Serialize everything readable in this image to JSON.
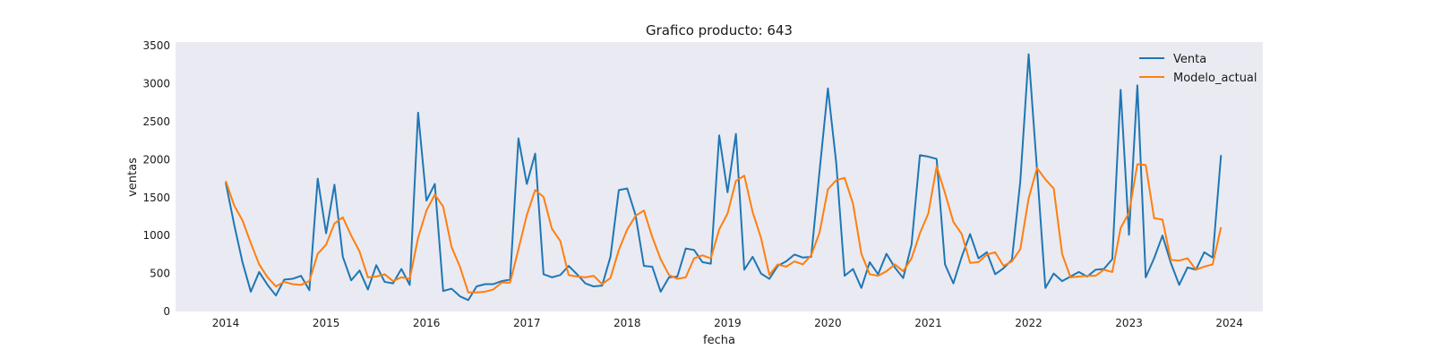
{
  "chart_data": {
    "type": "line",
    "title": "Grafico producto: 643",
    "xlabel": "fecha",
    "ylabel": "ventas",
    "x_start": "2014-01",
    "x_tick_labels": [
      "2014",
      "2015",
      "2016",
      "2017",
      "2018",
      "2019",
      "2020",
      "2021",
      "2022",
      "2023",
      "2024"
    ],
    "xlim": [
      "2013-07",
      "2024-05"
    ],
    "ylim": [
      0,
      3550
    ],
    "y_ticks": [
      0,
      500,
      1000,
      1500,
      2000,
      2500,
      3000,
      3500
    ],
    "grid": false,
    "legend_position": "top-right",
    "series": [
      {
        "name": "Venta",
        "color": "#1f77b4",
        "values": [
          1700,
          1150,
          650,
          260,
          520,
          350,
          210,
          420,
          430,
          470,
          280,
          1750,
          1030,
          1670,
          720,
          410,
          540,
          290,
          610,
          390,
          370,
          560,
          350,
          2620,
          1460,
          1680,
          270,
          300,
          200,
          150,
          330,
          360,
          360,
          400,
          420,
          2280,
          1680,
          2080,
          490,
          450,
          480,
          600,
          490,
          370,
          330,
          340,
          720,
          1600,
          1620,
          1270,
          600,
          590,
          260,
          450,
          460,
          830,
          810,
          650,
          630,
          2320,
          1570,
          2340,
          550,
          720,
          500,
          430,
          600,
          660,
          750,
          710,
          720,
          1850,
          2940,
          1950,
          470,
          560,
          310,
          650,
          490,
          760,
          580,
          440,
          880,
          2060,
          2040,
          2010,
          620,
          370,
          720,
          1020,
          700,
          780,
          490,
          570,
          680,
          1710,
          3390,
          1870,
          310,
          500,
          400,
          460,
          520,
          460,
          550,
          560,
          690,
          2920,
          1010,
          2980,
          450,
          700,
          1000,
          640,
          350,
          580,
          550,
          780,
          710,
          2060
        ]
      },
      {
        "name": "Modelo_actual",
        "color": "#ff7f0e",
        "values": [
          1720,
          1400,
          1200,
          900,
          620,
          450,
          330,
          390,
          360,
          350,
          400,
          760,
          880,
          1160,
          1240,
          1000,
          790,
          450,
          460,
          490,
          400,
          450,
          430,
          970,
          1330,
          1540,
          1380,
          850,
          590,
          250,
          250,
          260,
          290,
          380,
          380,
          820,
          1270,
          1600,
          1510,
          1090,
          930,
          480,
          460,
          450,
          470,
          360,
          440,
          810,
          1080,
          1260,
          1330,
          980,
          690,
          480,
          430,
          450,
          700,
          740,
          700,
          1080,
          1290,
          1720,
          1790,
          1310,
          970,
          480,
          620,
          590,
          660,
          620,
          740,
          1040,
          1610,
          1730,
          1760,
          1420,
          760,
          490,
          470,
          530,
          620,
          530,
          700,
          1030,
          1290,
          1910,
          1560,
          1180,
          1020,
          640,
          650,
          750,
          780,
          600,
          660,
          820,
          1490,
          1890,
          1740,
          1620,
          760,
          450,
          460,
          470,
          470,
          550,
          520,
          1100,
          1300,
          1940,
          1930,
          1230,
          1210,
          680,
          670,
          700,
          550,
          590,
          620,
          1110
        ]
      }
    ]
  }
}
